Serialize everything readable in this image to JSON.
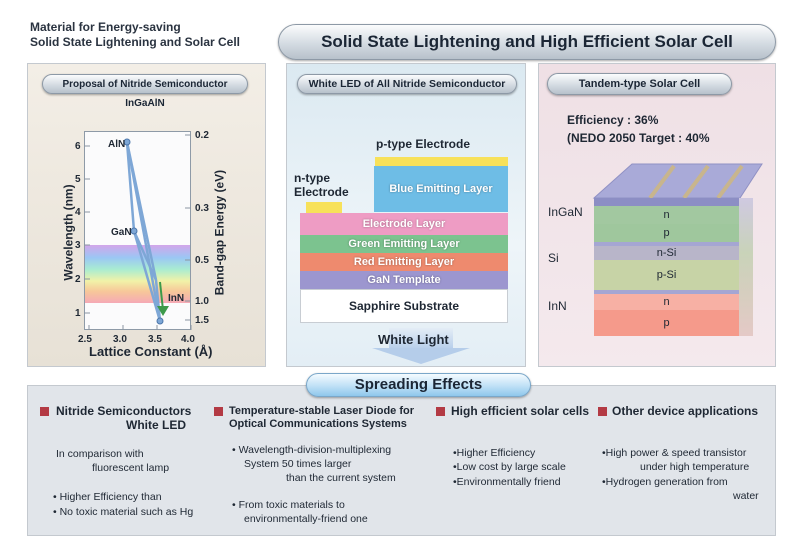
{
  "header": {
    "left_title_line1": "Material for Energy-saving",
    "left_title_line2": "Solid State Lightening and Solar Cell",
    "main_title": "Solid State Lightening and High Efficient Solar Cell"
  },
  "panel_left": {
    "title": "Proposal of Nitride Semiconductor InGaAlN",
    "chart_data": {
      "type": "scatter",
      "xlabel": "Lattice Constant (Å)",
      "ylabel_left": "Wavelength (nm)",
      "ylabel_right": "Band-gap Energy (eV)",
      "x_ticks": [
        "2.5",
        "3.0",
        "3.5",
        "4.0"
      ],
      "y_left_ticks": [
        "6",
        "5",
        "4",
        "3",
        "2",
        "1"
      ],
      "y_right_ticks": [
        "0.2",
        "0.3",
        "0.5",
        "1.0",
        "1.5"
      ],
      "points": [
        {
          "label": "AlN",
          "x": 3.11,
          "y": 6.2
        },
        {
          "label": "GaN",
          "x": 3.19,
          "y": 3.4
        },
        {
          "label": "InN",
          "x": 3.54,
          "y": 0.7
        }
      ],
      "xlim": [
        2.5,
        4.0
      ],
      "ylim": [
        0.7,
        6.5
      ]
    },
    "point_labels": {
      "aln": "AlN",
      "gan": "GaN",
      "inn": "InN"
    }
  },
  "panel_middle": {
    "title": "White LED of All Nitride Semiconductor",
    "p_electrode": "p-type Electrode",
    "n_electrode_line1": "n-type",
    "n_electrode_line2": "Electrode",
    "layers": {
      "blue": "Blue Emitting Layer",
      "electrode": "Electrode Layer",
      "green": "Green Emitting Layer",
      "red": "Red Emitting Layer",
      "gan": "GaN Template",
      "sapphire": "Sapphire Substrate"
    },
    "white_light": "White Light"
  },
  "panel_right": {
    "title": "Tandem-type  Solar  Cell",
    "efficiency": "Efficiency : 36%",
    "target": "(NEDO 2050 Target : 40%",
    "labels": {
      "ingan": "InGaN",
      "si": "Si",
      "inn": "InN"
    },
    "layers": {
      "n1": "n",
      "p1": "p",
      "nsi": "n-Si",
      "psi": "p-Si",
      "n2": "n",
      "p2": "p"
    }
  },
  "spreading": {
    "title": "Spreading Effects",
    "col1": {
      "head_line1": "Nitride Semiconductors",
      "head_line2": "White LED",
      "intro_line1": "In comparison with",
      "intro_line2": "fluorescent  lamp",
      "bullet1": "• Higher Efficiency than",
      "bullet2": "• No toxic material such as Hg"
    },
    "col2": {
      "head_line1": "Temperature-stable Laser Diode for",
      "head_line2": "Optical Communications Systems",
      "b1_line1": "• Wavelength-division-multiplexing",
      "b1_line2": "System 50 times larger",
      "b1_line3": "than the current system",
      "b2_line1": "• From toxic materials to",
      "b2_line2": "environmentally-friend one"
    },
    "col3": {
      "head": "High efficient solar cells",
      "b1": "•Higher Efficiency",
      "b2": "•Low cost by large scale",
      "b3": "•Environmentally friend"
    },
    "col4": {
      "head": "Other device applications",
      "b1_line1": "•High power & speed transistor",
      "b1_line2": "under high temperature",
      "b2_line1": "•Hydrogen generation from",
      "b2_line2": "water"
    }
  },
  "colors": {
    "accent_red": "#b33a44",
    "blue_layer": "#6ebde6",
    "electrode_layer": "#ee9cc4",
    "green_layer": "#7cc38f",
    "red_layer": "#ee8a6e",
    "gan_layer": "#9c96cf"
  }
}
